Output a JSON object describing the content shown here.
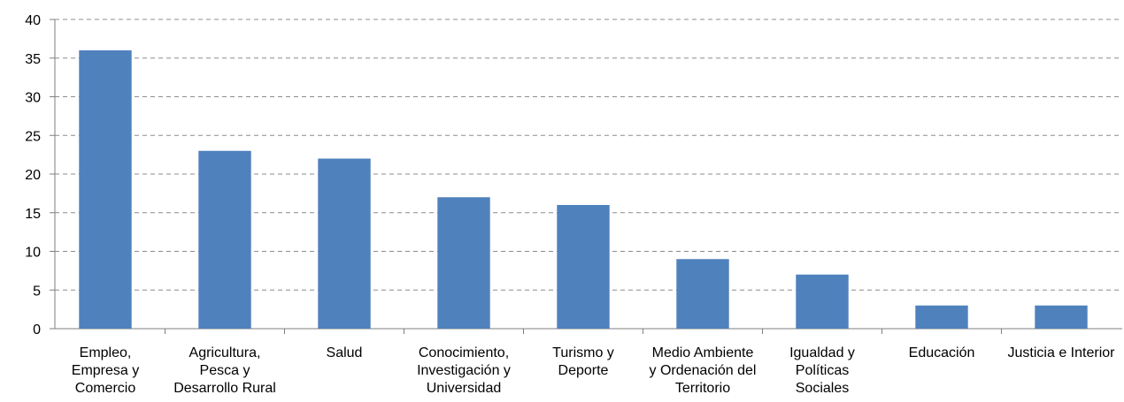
{
  "chart_data": {
    "type": "bar",
    "categories": [
      "Empleo,\nEmpresa y\nComercio",
      "Agricultura,\nPesca y\nDesarrollo Rural",
      "Salud",
      "Conocimiento,\nInvestigación y\nUniversidad",
      "Turismo y\nDeporte",
      "Medio Ambiente\ny Ordenación del\nTerritorio",
      "Igualdad y\nPolíticas\nSociales",
      "Educación",
      "Justicia e Interior"
    ],
    "values": [
      36,
      23,
      22,
      17,
      16,
      9,
      7,
      3,
      3
    ],
    "color": "#4f81bd",
    "ylim": [
      0,
      40
    ],
    "yticks": [
      0,
      5,
      10,
      15,
      20,
      25,
      30,
      35,
      40
    ],
    "grid": true
  }
}
